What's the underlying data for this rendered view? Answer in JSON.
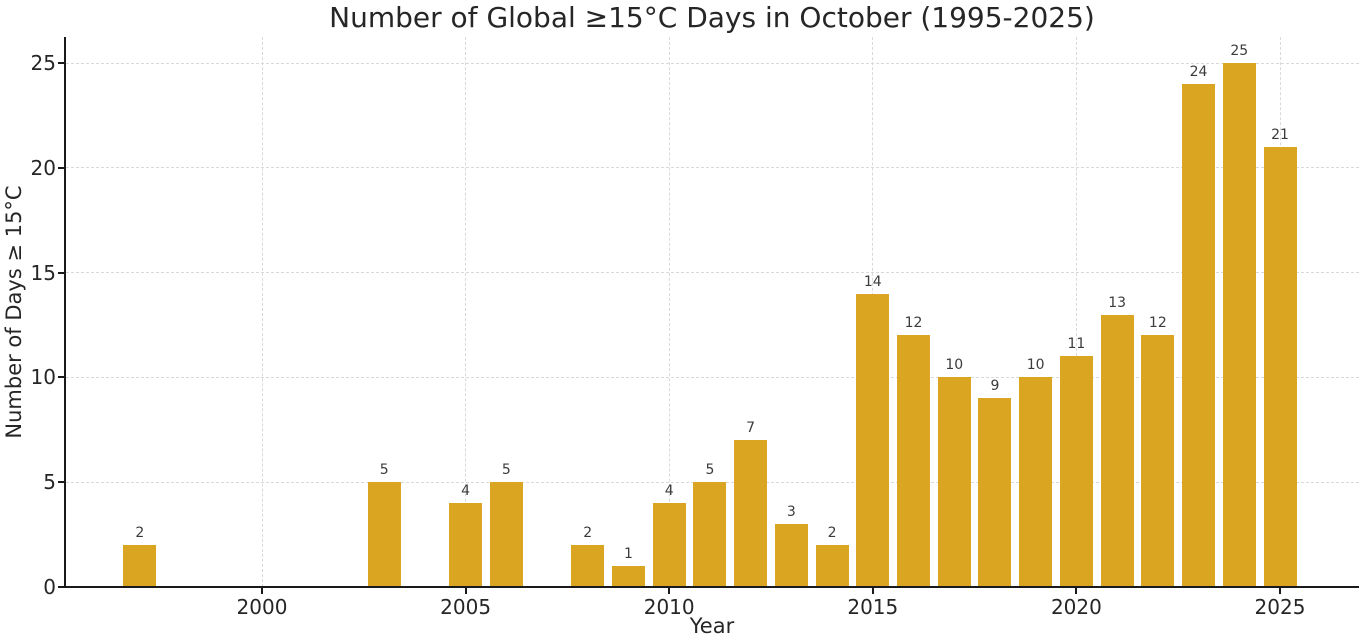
{
  "chart_data": {
    "type": "bar",
    "title": "Number of Global ≥15°C Days in October (1995-2025)",
    "xlabel": "Year",
    "ylabel": "Number of Days ≥ 15°C",
    "categories": [
      1995,
      1996,
      1997,
      1998,
      1999,
      2000,
      2001,
      2002,
      2003,
      2004,
      2005,
      2006,
      2007,
      2008,
      2009,
      2010,
      2011,
      2012,
      2013,
      2014,
      2015,
      2016,
      2017,
      2018,
      2019,
      2020,
      2021,
      2022,
      2023,
      2024,
      2025
    ],
    "values": [
      0,
      0,
      2,
      0,
      0,
      0,
      0,
      0,
      5,
      0,
      4,
      5,
      0,
      2,
      1,
      4,
      5,
      7,
      3,
      2,
      14,
      12,
      10,
      9,
      10,
      11,
      13,
      12,
      24,
      25,
      21
    ],
    "bar_value_labels": true,
    "zero_bars_hidden": true,
    "xticks": [
      2000,
      2005,
      2010,
      2015,
      2020,
      2025
    ],
    "yticks": [
      0,
      5,
      10,
      15,
      20,
      25
    ],
    "xlim": [
      1995.2,
      2026.9
    ],
    "ylim": [
      0,
      26.25
    ],
    "grid": "dashed, both axes, behind bars",
    "legend": "none",
    "spines": "left and bottom only",
    "colors": {
      "bar": "#DAA520",
      "grid": "#d9d9d9",
      "text": "#262626",
      "annotation": "#3b3b3b",
      "spine": "#1a1a1a",
      "background": "#ffffff"
    }
  }
}
